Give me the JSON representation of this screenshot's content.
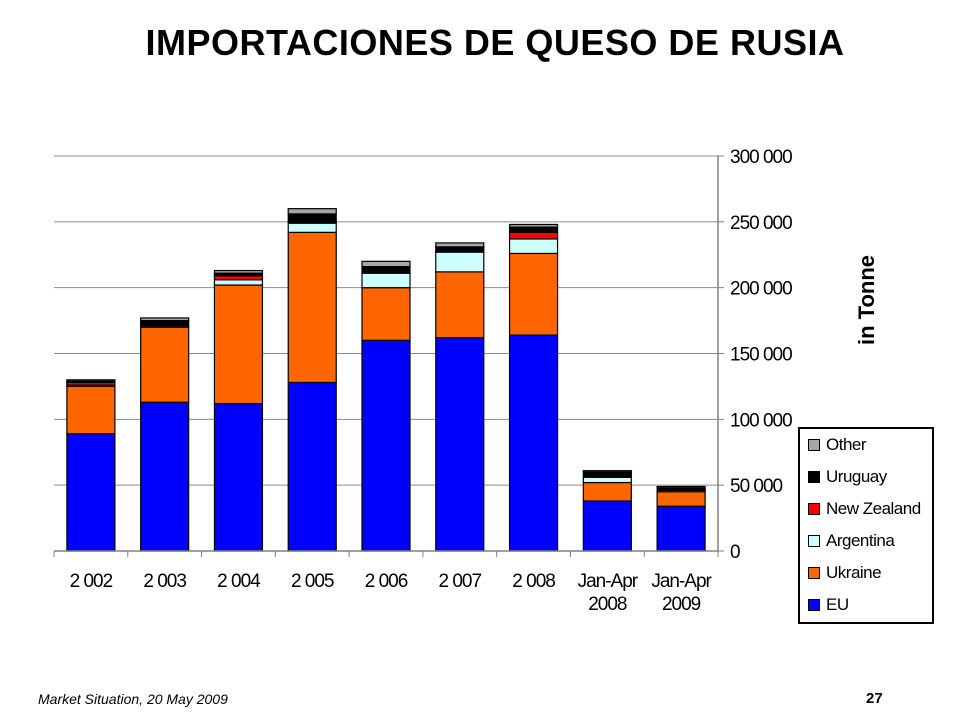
{
  "title": "IMPORTACIONES DE QUESO DE RUSIA",
  "footer": {
    "source": "Market Situation, 20 May 2009",
    "page": "27"
  },
  "chart_data": {
    "type": "bar",
    "stacked": true,
    "ylabel": "in Tonne",
    "ylim": [
      0,
      300000
    ],
    "yticks": [
      "0",
      "50 000",
      "100 000",
      "150 000",
      "200 000",
      "250 000",
      "300 000"
    ],
    "categories": [
      [
        "2 002"
      ],
      [
        "2 003"
      ],
      [
        "2 004"
      ],
      [
        "2 005"
      ],
      [
        "2 006"
      ],
      [
        "2 007"
      ],
      [
        "2 008"
      ],
      [
        "Jan-Apr",
        "2008"
      ],
      [
        "Jan-Apr",
        "2009"
      ]
    ],
    "series": [
      {
        "name": "EU",
        "color": "#0000ff",
        "values": [
          89000,
          113000,
          112000,
          128000,
          160000,
          162000,
          164000,
          38000,
          34000
        ]
      },
      {
        "name": "Ukraine",
        "color": "#ff6600",
        "values": [
          36000,
          57000,
          90000,
          114000,
          40000,
          50000,
          62000,
          14000,
          11000
        ]
      },
      {
        "name": "Argentina",
        "color": "#ccffff",
        "values": [
          1000,
          1000,
          4000,
          7000,
          11000,
          15000,
          11000,
          4000,
          1000
        ]
      },
      {
        "name": "New Zealand",
        "color": "#ff0000",
        "values": [
          2000,
          0,
          3000,
          1000,
          0,
          0,
          5000,
          0,
          1000
        ]
      },
      {
        "name": "Uruguay",
        "color": "#000000",
        "values": [
          1000,
          4000,
          2000,
          6000,
          5000,
          4000,
          4000,
          4000,
          1000
        ]
      },
      {
        "name": "Other",
        "color": "#a6a6a6",
        "values": [
          1000,
          2000,
          2000,
          4000,
          4000,
          3000,
          2000,
          1000,
          1000
        ]
      }
    ],
    "grid": true,
    "legend_position": "right"
  }
}
